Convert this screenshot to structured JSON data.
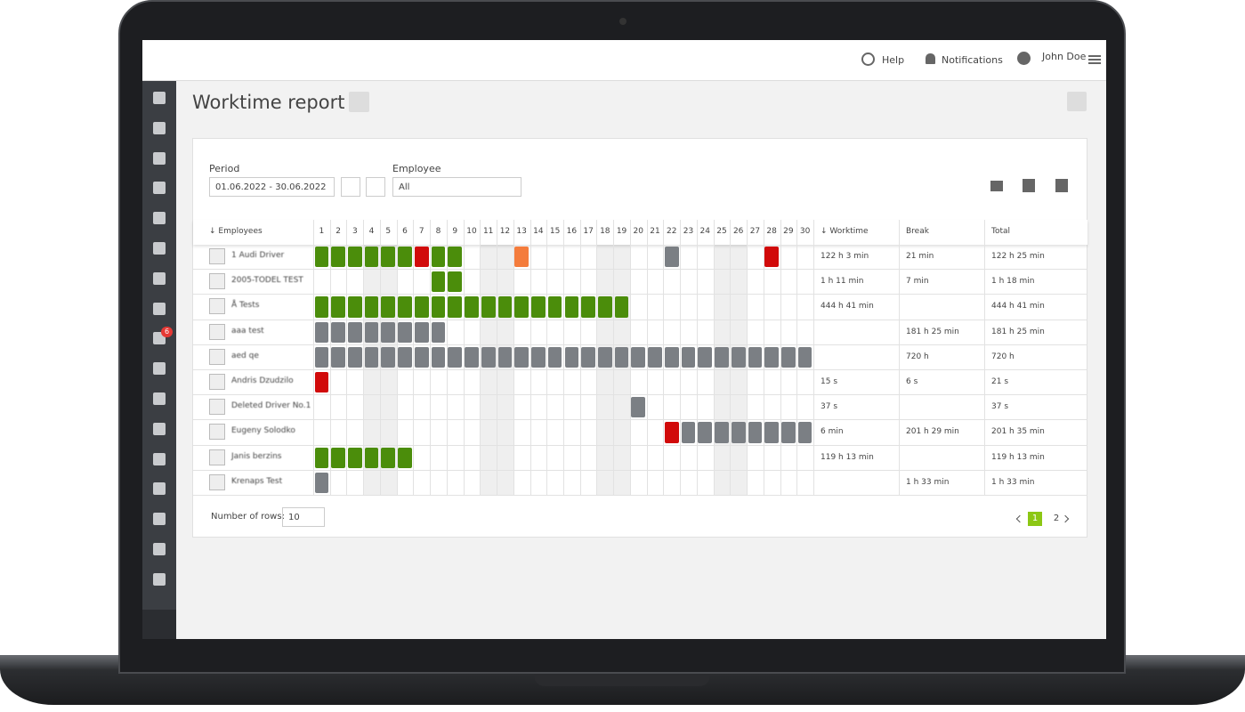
{
  "topbar": {
    "help": "Help",
    "notifications": "Notifications",
    "user": "John Doe"
  },
  "sidebar": {
    "badge": "6"
  },
  "page": {
    "title": "Worktime report"
  },
  "filters": {
    "period_label": "Period",
    "period_value": "01.06.2022 - 30.06.2022",
    "employee_label": "Employee",
    "employee_value": "All"
  },
  "table": {
    "headers": {
      "employees": "↓ Employees",
      "worktime": "↓ Worktime",
      "break": "Break",
      "total": "Total"
    },
    "days": [
      "1",
      "2",
      "3",
      "4",
      "5",
      "6",
      "7",
      "8",
      "9",
      "10",
      "11",
      "12",
      "13",
      "14",
      "15",
      "16",
      "17",
      "18",
      "19",
      "20",
      "21",
      "22",
      "23",
      "24",
      "25",
      "26",
      "27",
      "28",
      "29",
      "30"
    ],
    "weekend": [
      false,
      false,
      false,
      true,
      true,
      false,
      false,
      false,
      false,
      false,
      true,
      true,
      false,
      false,
      false,
      false,
      false,
      true,
      true,
      false,
      false,
      false,
      false,
      false,
      true,
      true,
      false,
      false,
      false,
      false
    ],
    "status_colors": {
      "g": "#4b8d0b",
      "r": "#d10a0a",
      "o": "#f47c3c",
      "x": "#7b7f84"
    },
    "rows": [
      {
        "name": "1 Audi Driver",
        "cells": [
          "g",
          "g",
          "g",
          "g",
          "g",
          "g",
          "r",
          "g",
          "g",
          null,
          null,
          null,
          "o",
          null,
          null,
          null,
          null,
          null,
          null,
          null,
          null,
          "x",
          null,
          null,
          null,
          null,
          null,
          "r",
          null,
          null
        ],
        "worktime": "122 h 3 min",
        "break": "21 min",
        "total": "122 h 25 min"
      },
      {
        "name": "2005-TODEL TEST",
        "cells": [
          null,
          null,
          null,
          null,
          null,
          null,
          null,
          "g",
          "g",
          null,
          null,
          null,
          null,
          null,
          null,
          null,
          null,
          null,
          null,
          null,
          null,
          null,
          null,
          null,
          null,
          null,
          null,
          null,
          null,
          null
        ],
        "worktime": "1 h 11 min",
        "break": "7 min",
        "total": "1 h 18 min"
      },
      {
        "name": "Å Tests",
        "cells": [
          "g",
          "g",
          "g",
          "g",
          "g",
          "g",
          "g",
          "g",
          "g",
          "g",
          "g",
          "g",
          "g",
          "g",
          "g",
          "g",
          "g",
          "g",
          "g",
          null,
          null,
          null,
          null,
          null,
          null,
          null,
          null,
          null,
          null,
          null
        ],
        "worktime": "444 h 41 min",
        "break": null,
        "total": "444 h 41 min"
      },
      {
        "name": "aaa test",
        "cells": [
          "x",
          "x",
          "x",
          "x",
          "x",
          "x",
          "x",
          "x",
          null,
          null,
          null,
          null,
          null,
          null,
          null,
          null,
          null,
          null,
          null,
          null,
          null,
          null,
          null,
          null,
          null,
          null,
          null,
          null,
          null,
          null
        ],
        "worktime": null,
        "break": "181 h 25 min",
        "total": "181 h 25 min"
      },
      {
        "name": "aed qe",
        "cells": [
          "x",
          "x",
          "x",
          "x",
          "x",
          "x",
          "x",
          "x",
          "x",
          "x",
          "x",
          "x",
          "x",
          "x",
          "x",
          "x",
          "x",
          "x",
          "x",
          "x",
          "x",
          "x",
          "x",
          "x",
          "x",
          "x",
          "x",
          "x",
          "x",
          "x"
        ],
        "worktime": null,
        "break": "720 h",
        "total": "720 h"
      },
      {
        "name": "Andris Dzudzilo",
        "cells": [
          "r",
          null,
          null,
          null,
          null,
          null,
          null,
          null,
          null,
          null,
          null,
          null,
          null,
          null,
          null,
          null,
          null,
          null,
          null,
          null,
          null,
          null,
          null,
          null,
          null,
          null,
          null,
          null,
          null,
          null
        ],
        "worktime": "15 s",
        "break": "6 s",
        "total": "21 s"
      },
      {
        "name": "Deleted Driver No.1",
        "cells": [
          null,
          null,
          null,
          null,
          null,
          null,
          null,
          null,
          null,
          null,
          null,
          null,
          null,
          null,
          null,
          null,
          null,
          null,
          null,
          "x",
          null,
          null,
          null,
          null,
          null,
          null,
          null,
          null,
          null,
          null
        ],
        "worktime": "37 s",
        "break": null,
        "total": "37 s"
      },
      {
        "name": "Eugeny Solodko",
        "cells": [
          null,
          null,
          null,
          null,
          null,
          null,
          null,
          null,
          null,
          null,
          null,
          null,
          null,
          null,
          null,
          null,
          null,
          null,
          null,
          null,
          null,
          "r",
          "x",
          "x",
          "x",
          "x",
          "x",
          "x",
          "x",
          "x"
        ],
        "worktime": "6 min",
        "break": "201 h 29 min",
        "total": "201 h 35 min"
      },
      {
        "name": "Janis berzins",
        "cells": [
          "g",
          "g",
          "g",
          "g",
          "g",
          "g",
          null,
          null,
          null,
          null,
          null,
          null,
          null,
          null,
          null,
          null,
          null,
          null,
          null,
          null,
          null,
          null,
          null,
          null,
          null,
          null,
          null,
          null,
          null,
          null
        ],
        "worktime": "119 h 13 min",
        "break": null,
        "total": "119 h 13 min"
      },
      {
        "name": "Krenaps Test",
        "cells": [
          "x",
          null,
          null,
          null,
          null,
          null,
          null,
          null,
          null,
          null,
          null,
          null,
          null,
          null,
          null,
          null,
          null,
          null,
          null,
          null,
          null,
          null,
          null,
          null,
          null,
          null,
          null,
          null,
          null,
          null
        ],
        "worktime": null,
        "break": "1 h 33 min",
        "total": "1 h 33 min"
      }
    ]
  },
  "footer": {
    "rows_label": "Number of rows:",
    "rows_value": "10",
    "pages": [
      "1",
      "2"
    ]
  }
}
